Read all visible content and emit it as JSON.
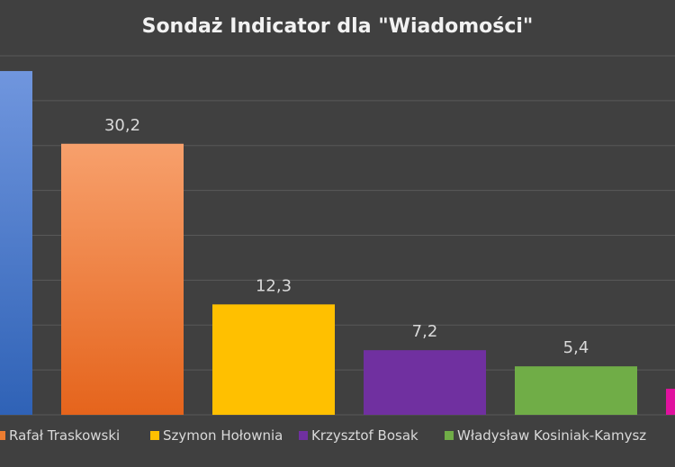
{
  "chart_data": {
    "type": "bar",
    "title": "Sondaż Indicator dla \"Wiadomości\"",
    "xlabel": "",
    "ylabel": "",
    "ylim": [
      0,
      40
    ],
    "grid": true,
    "legend_placement": "bottom",
    "categories": [
      "",
      "Rafał Traskowski",
      "Szymon Hołownia",
      "Krzysztof Bosak",
      "Władysław Kosiniak-Kamysz",
      ""
    ],
    "values": [
      38.3,
      30.2,
      12.3,
      7.2,
      5.4,
      2.9
    ],
    "value_labels": [
      "",
      "30,2",
      "12,3",
      "7,2",
      "5,4",
      ""
    ],
    "colors": [
      [
        "#7096de",
        "#2f62b6"
      ],
      [
        "#f7a06c",
        "#e5641c"
      ],
      [
        "#ffc000",
        "#ffc000"
      ],
      [
        "#7030a0",
        "#7030a0"
      ],
      [
        "#70ad47",
        "#70ad47"
      ],
      [
        "#e0119e",
        "#e0119e"
      ]
    ],
    "legend": [
      {
        "name": "Rafał Traskowski",
        "color": "#ed7d31"
      },
      {
        "name": "Szymon Hołownia",
        "color": "#ffc000"
      },
      {
        "name": "Krzysztof Bosak",
        "color": "#7030a0"
      },
      {
        "name": "Władysław Kosiniak-Kamysz",
        "color": "#70ad47"
      }
    ]
  }
}
